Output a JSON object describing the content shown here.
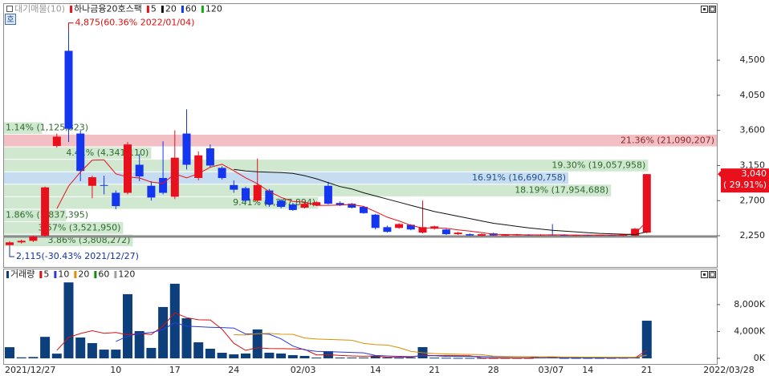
{
  "chart_data": [
    {
      "type": "candlestick",
      "legend_title": "대기매물(10)",
      "badge": "호",
      "name": "하나금융20호스팩",
      "up_color": "#e8101c",
      "down_color": "#1436f0",
      "categories": [
        "2021/12/27",
        null,
        null,
        null,
        null,
        null,
        null,
        null,
        null,
        "10",
        null,
        null,
        null,
        null,
        "17",
        null,
        null,
        null,
        null,
        "24",
        null,
        null,
        null,
        null,
        "02/03",
        null,
        null,
        null,
        null,
        null,
        null,
        "14",
        null,
        null,
        null,
        null,
        "21",
        null,
        null,
        null,
        null,
        "28",
        null,
        null,
        null,
        "03/07",
        null,
        null,
        null,
        "14",
        null,
        null,
        null,
        null,
        "21",
        null,
        null,
        null,
        null,
        "2022/03/28"
      ],
      "open": [
        2130,
        2165,
        2185,
        2250,
        3400,
        4620,
        3560,
        2890,
        2900,
        2800,
        2800,
        3160,
        2890,
        2990,
        2750,
        3560,
        2990,
        3370,
        3120,
        2900,
        2860,
        2700,
        2830,
        2700,
        2650,
        2610,
        2640,
        2890,
        2670,
        2660,
        2620,
        2520,
        2360,
        2350,
        2390,
        2290,
        2340,
        2330,
        2270,
        2270,
        2250,
        2280,
        2255,
        2260,
        2265,
        2260,
        2265,
        2260,
        2255,
        2260,
        2255,
        2260,
        2250,
        2250,
        2290,
        null,
        null,
        null,
        null,
        null
      ],
      "high": [
        2180,
        2200,
        2250,
        2880,
        3560,
        4875,
        3600,
        3020,
        3020,
        2830,
        3450,
        3300,
        2950,
        3460,
        3600,
        3870,
        3330,
        3420,
        3140,
        2960,
        2880,
        3240,
        2850,
        2720,
        2670,
        2680,
        2690,
        2940,
        2690,
        2670,
        2630,
        2530,
        2380,
        2410,
        2400,
        2700,
        2380,
        2340,
        2300,
        2280,
        2280,
        2290,
        2270,
        2275,
        2270,
        2270,
        2400,
        2270,
        2265,
        2265,
        2265,
        2265,
        2270,
        2350,
        3040,
        null,
        null,
        null,
        null,
        null
      ],
      "low": [
        2115,
        2150,
        2170,
        2240,
        3380,
        3450,
        2950,
        2730,
        2780,
        2590,
        2780,
        2950,
        2700,
        2780,
        2720,
        3100,
        2960,
        3130,
        2970,
        2800,
        2680,
        2680,
        2620,
        2600,
        2570,
        2600,
        2630,
        2650,
        2630,
        2600,
        2530,
        2330,
        2290,
        2340,
        2320,
        2280,
        2330,
        2260,
        2260,
        2250,
        2245,
        2250,
        2245,
        2250,
        2250,
        2250,
        2255,
        2250,
        2245,
        2250,
        2250,
        2250,
        2245,
        2245,
        2280,
        null,
        null,
        null,
        null,
        null
      ],
      "close": [
        2165,
        2185,
        2240,
        2870,
        3520,
        3620,
        3080,
        3000,
        2890,
        2630,
        3420,
        3010,
        2740,
        2800,
        3250,
        3160,
        3280,
        3150,
        2990,
        2840,
        2700,
        2900,
        2650,
        2620,
        2580,
        2660,
        2680,
        2660,
        2640,
        2610,
        2540,
        2350,
        2300,
        2400,
        2330,
        2360,
        2370,
        2270,
        2290,
        2255,
        2270,
        2255,
        2260,
        2270,
        2255,
        2265,
        2260,
        2255,
        2260,
        2255,
        2260,
        2258,
        2265,
        2340,
        3040,
        null,
        null,
        null,
        null,
        null
      ],
      "series": [
        {
          "name": "5",
          "color": "#e8101c",
          "values": [
            null,
            null,
            null,
            null,
            2596,
            2887,
            3066,
            3218,
            3222,
            3044,
            3004,
            2990,
            2938,
            2920,
            3044,
            2992,
            3046,
            3128,
            3166,
            3084,
            2992,
            2916,
            2816,
            2742,
            2690,
            2682,
            2638,
            2640,
            2644,
            2650,
            2626,
            2560,
            2488,
            2440,
            2384,
            2348,
            2352,
            2346,
            2324,
            2309,
            2291,
            2268,
            2266,
            2262,
            2262,
            2261,
            2262,
            2261,
            2259,
            2259,
            2258,
            2258,
            2260,
            2276,
            2433,
            null,
            null,
            null,
            null,
            null
          ]
        },
        {
          "name": "20",
          "color": "#111111",
          "values": [
            null,
            null,
            null,
            null,
            null,
            null,
            null,
            null,
            null,
            null,
            null,
            null,
            null,
            null,
            null,
            null,
            null,
            null,
            null,
            3100,
            3080,
            3070,
            3065,
            3060,
            3050,
            3020,
            2980,
            2930,
            2880,
            2850,
            2800,
            2760,
            2720,
            2680,
            2640,
            2600,
            2560,
            2530,
            2500,
            2470,
            2440,
            2410,
            2390,
            2370,
            2350,
            2335,
            2320,
            2310,
            2300,
            2290,
            2280,
            2275,
            2270,
            2265,
            2300,
            null,
            null,
            null,
            null,
            null
          ]
        },
        {
          "name": "60",
          "color": "#1436f0"
        },
        {
          "name": "120",
          "color": "#10b010"
        }
      ],
      "ylim": [
        1860,
        5220
      ],
      "yticks": [
        {
          "value": 2250,
          "label": "2,250"
        },
        {
          "value": 2700,
          "label": "2,700"
        },
        {
          "value": 3150,
          "label": "3,150"
        },
        {
          "value": 3600,
          "label": "3,600"
        },
        {
          "value": 4050,
          "label": "4,050"
        },
        {
          "value": 4500,
          "label": "4,500"
        }
      ],
      "reference_line": 2240,
      "volume_profile": {
        "ranges": [
          [
            3550,
            3710
          ],
          [
            3390,
            3550
          ],
          [
            3230,
            3390
          ],
          [
            3070,
            3230
          ],
          [
            2910,
            3070
          ],
          [
            2750,
            2910
          ],
          [
            2590,
            2750
          ],
          [
            2430,
            2590
          ],
          [
            2270,
            2430
          ],
          [
            2110,
            2270
          ]
        ],
        "values": [
          1.14,
          21.36,
          4.41,
          19.3,
          16.91,
          18.19,
          9.41,
          1.86,
          3.57,
          3.86
        ],
        "value_labels": [
          "1.14% (1,125,823)",
          "21.36% (21,090,207)",
          "4.41% (4,341,110)",
          "19.30% (19,057,958)",
          "16.91% (16,690,758)",
          "18.19% (17,954,688)",
          "9.41% (9,287,894)",
          "1.86% (1,837,395)",
          "3.57% (3,521,950)",
          "3.86% (3,808,272)"
        ],
        "colors": [
          "#cfe8cf",
          "#f2bfc4",
          "#cfe8cf",
          "#cfe8cf",
          "#c6dcf0",
          "#cfe8cf",
          "#cfe8cf",
          "#cfe8cf",
          "#cfe8cf",
          "#cfe8cf"
        ],
        "text_colors": [
          "#2f6a2f",
          "#8a2a2a",
          "#2f6a2f",
          "#2f6a2f",
          "#23508a",
          "#2f6a2f",
          "#2f6a2f",
          "#2f6a2f",
          "#2f6a2f",
          "#2f6a2f"
        ]
      },
      "annotations": [
        {
          "label": "4,875(60.36% 2022/01/04)",
          "value": 4875,
          "color": "#d81010"
        },
        {
          "label": "2,115(-30.43% 2021/12/27)",
          "value": 2115,
          "color": "#1030b0"
        }
      ],
      "last_price": {
        "value": 3040,
        "label": "3,040",
        "change": 29.91,
        "change_label": "( 29.91%)",
        "color": "#e8101c"
      }
    },
    {
      "type": "bar",
      "legend_title": "거래량",
      "color": "#0d3f7c",
      "values": [
        1660,
        150,
        200,
        3200,
        700,
        11300,
        3100,
        2270,
        1300,
        1300,
        9550,
        4050,
        1550,
        7640,
        11100,
        5970,
        2390,
        1430,
        830,
        600,
        720,
        4300,
        840,
        720,
        480,
        360,
        120,
        1070,
        120,
        120,
        120,
        360,
        120,
        80,
        120,
        1670,
        100,
        80,
        60,
        60,
        60,
        60,
        60,
        60,
        60,
        120,
        200,
        60,
        60,
        60,
        60,
        60,
        80,
        150,
        5600,
        null,
        null,
        null,
        null,
        null
      ],
      "series": [
        {
          "name": "5",
          "color": "#d81010",
          "values": [
            null,
            null,
            null,
            null,
            1182,
            3110,
            3700,
            4114,
            3734,
            3854,
            3504,
            3694,
            3550,
            4818,
            6778,
            6062,
            5730,
            5706,
            4344,
            2244,
            1194,
            1576,
            1458,
            1436,
            1412,
            1340,
            504,
            550,
            430,
            358,
            310,
            358,
            168,
            160,
            160,
            470,
            418,
            410,
            406,
            394,
            72,
            60,
            60,
            60,
            60,
            72,
            100,
            100,
            100,
            100,
            88,
            60,
            64,
            82,
            1190,
            null,
            null,
            null,
            null,
            null
          ]
        },
        {
          "name": "10",
          "color": "#2a3cd8",
          "values": [
            null,
            null,
            null,
            null,
            null,
            null,
            null,
            null,
            null,
            2518,
            3307,
            3697,
            3832,
            4276,
            5316,
            4783,
            4712,
            4628,
            4581,
            4511,
            3628,
            3653,
            3582,
            2890,
            1828,
            1267,
            1040,
            1004,
            933,
            885,
            825,
            431,
            359,
            295,
            259,
            390,
            388,
            289,
            283,
            277,
            271,
            241,
            235,
            233,
            227,
            72,
            82,
            80,
            80,
            80,
            80,
            80,
            82,
            91,
            639,
            null,
            null,
            null,
            null,
            null
          ]
        },
        {
          "name": "20",
          "color": "#d89000",
          "values": [
            null,
            null,
            null,
            null,
            null,
            null,
            null,
            null,
            null,
            null,
            null,
            null,
            null,
            null,
            null,
            null,
            null,
            null,
            null,
            3515,
            3468,
            3675,
            3707,
            3583,
            3572,
            3025,
            2876,
            2816,
            2757,
            2698,
            2227,
            2042,
            1971,
            1593,
            1044,
            829,
            714,
            647,
            608,
            581,
            548,
            336,
            297,
            264,
            243,
            231,
            235,
            185,
            182,
            179,
            176,
            161,
            159,
            162,
            436,
            null,
            null,
            null,
            null,
            null
          ]
        },
        {
          "name": "60",
          "color": "#108a10"
        },
        {
          "name": "120",
          "color": "#a0a0a0"
        }
      ],
      "ylim": [
        -600,
        13000
      ],
      "yticks": [
        {
          "value": 0,
          "label": "0K"
        },
        {
          "value": 4000,
          "label": "4,000K"
        },
        {
          "value": 8000,
          "label": "8,000K"
        }
      ]
    }
  ]
}
